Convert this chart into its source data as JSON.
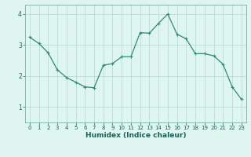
{
  "x": [
    0,
    1,
    2,
    3,
    4,
    5,
    6,
    7,
    8,
    9,
    10,
    11,
    12,
    13,
    14,
    15,
    16,
    17,
    18,
    19,
    20,
    21,
    22,
    23
  ],
  "y": [
    3.25,
    3.05,
    2.75,
    2.2,
    1.95,
    1.8,
    1.65,
    1.62,
    2.35,
    2.4,
    2.62,
    2.62,
    3.4,
    3.38,
    3.7,
    4.0,
    3.35,
    3.2,
    2.72,
    2.72,
    2.65,
    2.38,
    1.65,
    1.25
  ],
  "line_color": "#2e8b7a",
  "marker": "+",
  "marker_size": 3,
  "marker_linewidth": 0.8,
  "line_width": 0.9,
  "bg_color": "#dff5f0",
  "grid_color": "#b8ddd8",
  "xlabel": "Humidex (Indice chaleur)",
  "ylim": [
    0.5,
    4.3
  ],
  "xlim": [
    -0.5,
    23.5
  ],
  "yticks": [
    1,
    2,
    3,
    4
  ],
  "xticks": [
    0,
    1,
    2,
    3,
    4,
    5,
    6,
    7,
    8,
    9,
    10,
    11,
    12,
    13,
    14,
    15,
    16,
    17,
    18,
    19,
    20,
    21,
    22,
    23
  ],
  "xtick_fontsize": 5.0,
  "ytick_fontsize": 5.5,
  "xlabel_fontsize": 6.5,
  "xlabel_bold": true,
  "spine_color": "#7aada8"
}
